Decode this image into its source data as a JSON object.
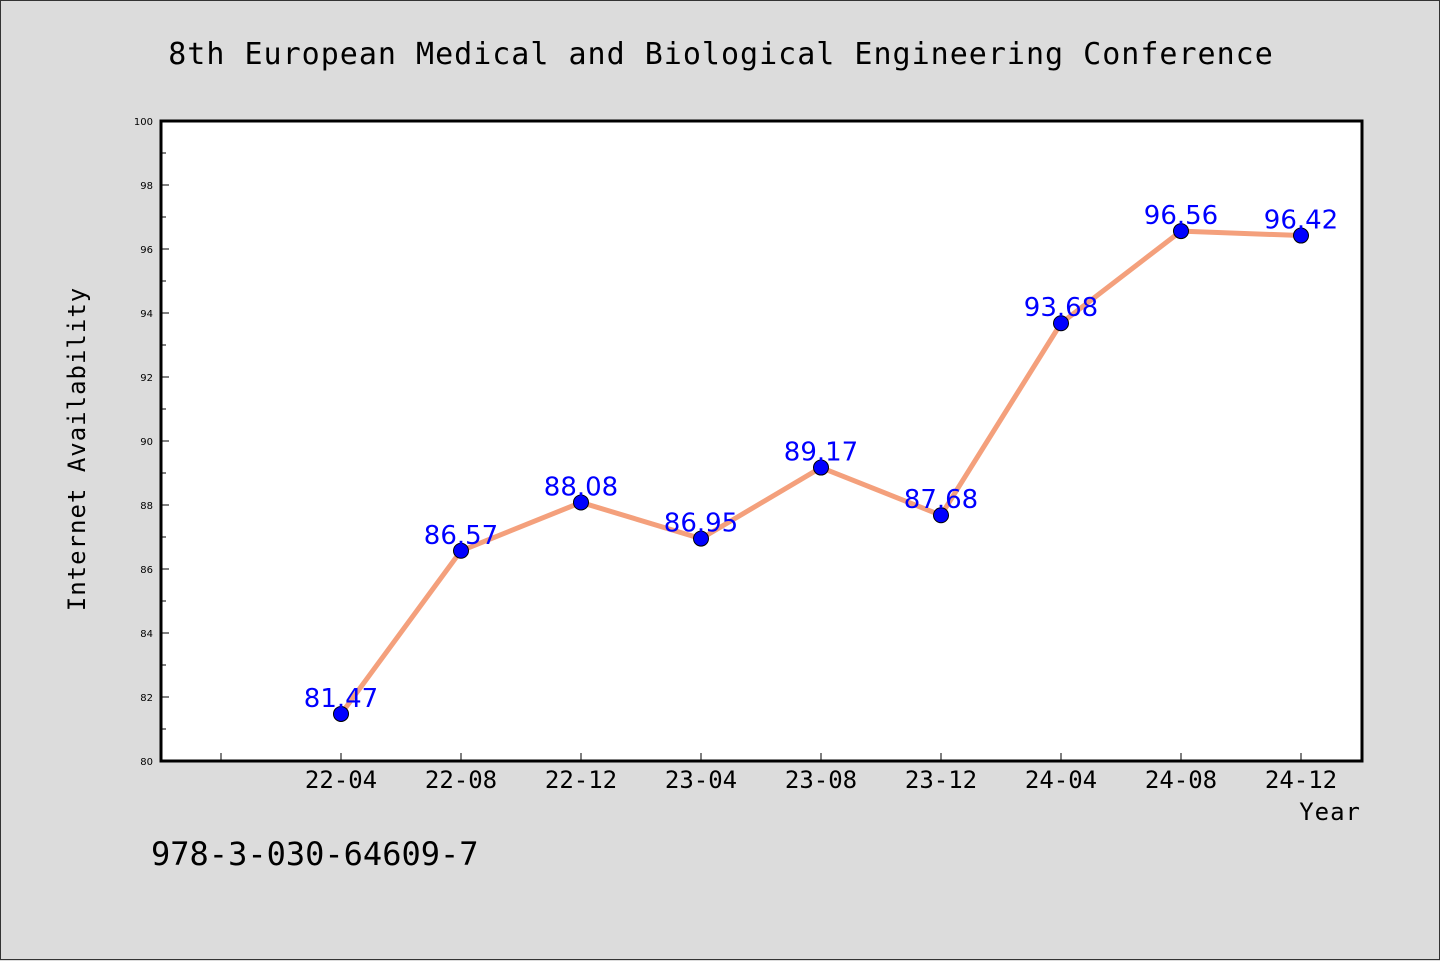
{
  "chart_data": {
    "type": "line",
    "title": "8th European Medical and Biological Engineering Conference",
    "xlabel": "Year",
    "ylabel": "Internet Availability",
    "categories": [
      "22-04",
      "22-08",
      "22-12",
      "23-04",
      "23-08",
      "23-12",
      "24-04",
      "24-08",
      "24-12"
    ],
    "series": [
      {
        "values": [
          81.47,
          86.57,
          88.08,
          86.95,
          89.17,
          87.68,
          93.68,
          96.56,
          96.42
        ],
        "labels": [
          "81.47",
          "86.57",
          "88.08",
          "86.95",
          "89.17",
          "87.68",
          "93.68",
          "96.56",
          "96.42"
        ],
        "line_color": "#f4a07c",
        "marker_color": "#0000ff"
      }
    ],
    "ylim": [
      80,
      100
    ],
    "yticks": [
      "80",
      "82",
      "84",
      "86",
      "88",
      "90",
      "92",
      "94",
      "96",
      "98",
      "100"
    ],
    "grid": false,
    "legend": "none"
  },
  "footer": {
    "isbn": "978-3-030-64609-7"
  },
  "colors": {
    "background": "#dcdcdc",
    "plot_background": "#ffffff",
    "line": "#f4a07c",
    "marker": "#0000ff",
    "data_label": "#0000ff"
  }
}
